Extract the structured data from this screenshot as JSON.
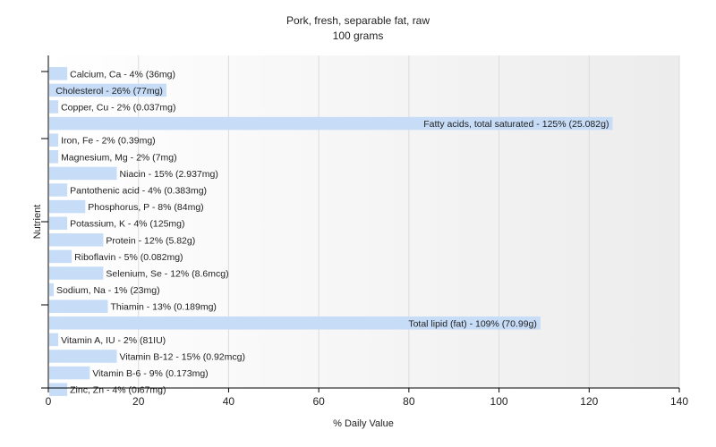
{
  "chart_data": {
    "type": "bar",
    "orientation": "horizontal",
    "title": "Pork, fresh, separable fat, raw",
    "subtitle": "100 grams",
    "xlabel": "% Daily Value",
    "ylabel": "Nutrient",
    "xlim": [
      0,
      140
    ],
    "xticks": [
      0,
      20,
      40,
      60,
      80,
      100,
      120,
      140
    ],
    "grid": true,
    "bar_color": "#c6dcf7",
    "plot_bg_from": "#ffffff",
    "plot_bg_to": "#ececec",
    "categories": [
      "Calcium, Ca",
      "Cholesterol",
      "Copper, Cu",
      "Fatty acids, total saturated",
      "Iron, Fe",
      "Magnesium, Mg",
      "Niacin",
      "Pantothenic acid",
      "Phosphorus, P",
      "Potassium, K",
      "Protein",
      "Riboflavin",
      "Selenium, Se",
      "Sodium, Na",
      "Thiamin",
      "Total lipid (fat)",
      "Vitamin A, IU",
      "Vitamin B-12",
      "Vitamin B-6",
      "Zinc, Zn"
    ],
    "values": [
      4,
      26,
      2,
      125,
      2,
      2,
      15,
      4,
      8,
      4,
      12,
      5,
      12,
      1,
      13,
      109,
      2,
      15,
      9,
      4
    ],
    "labels": [
      "Calcium, Ca - 4% (36mg)",
      "Cholesterol - 26% (77mg)",
      "Copper, Cu - 2% (0.037mg)",
      "Fatty acids, total saturated - 125% (25.082g)",
      "Iron, Fe - 2% (0.39mg)",
      "Magnesium, Mg - 2% (7mg)",
      "Niacin - 15% (2.937mg)",
      "Pantothenic acid - 4% (0.383mg)",
      "Phosphorus, P - 8% (84mg)",
      "Potassium, K - 4% (125mg)",
      "Protein - 12% (5.82g)",
      "Riboflavin - 5% (0.082mg)",
      "Selenium, Se - 12% (8.6mcg)",
      "Sodium, Na - 1% (23mg)",
      "Thiamin - 13% (0.189mg)",
      "Total lipid (fat) - 109% (70.99g)",
      "Vitamin A, IU - 2% (81IU)",
      "Vitamin B-12 - 15% (0.92mcg)",
      "Vitamin B-6 - 9% (0.173mg)",
      "Zinc, Zn - 4% (0.67mg)"
    ]
  }
}
